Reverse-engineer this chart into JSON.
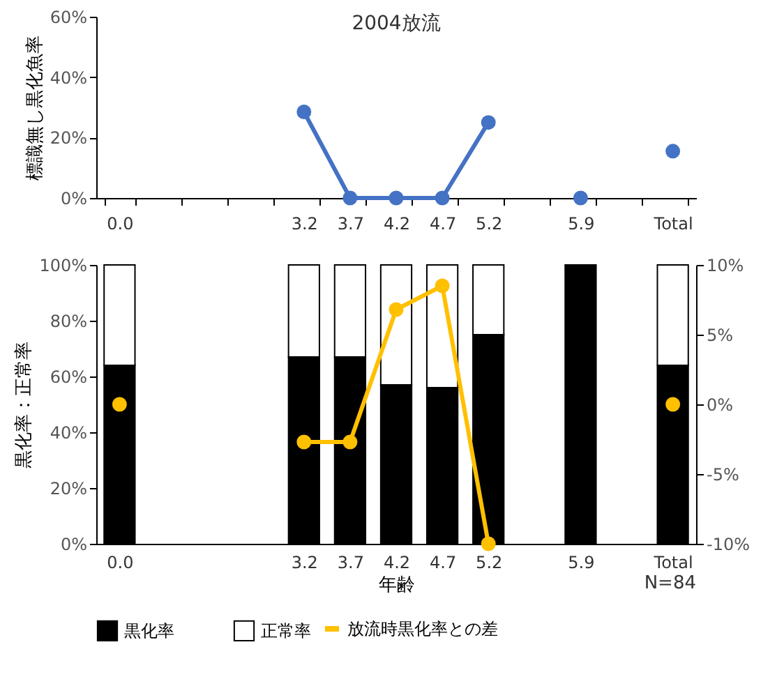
{
  "chart_data": [
    {
      "type": "line",
      "title": "2004放流",
      "ylabel": "標識無し黒化魚率",
      "categories": [
        "0.0",
        null,
        null,
        null,
        "3.2",
        "3.7",
        "4.2",
        "4.7",
        "5.2",
        null,
        "5.9",
        null,
        "Total"
      ],
      "series": [
        {
          "color": "#4472c4",
          "values": [
            null,
            null,
            null,
            null,
            28.5,
            0,
            0,
            0,
            25,
            null,
            0,
            null,
            15.5
          ]
        }
      ],
      "ylim": [
        0,
        60
      ],
      "yticks": [
        {
          "value": 0,
          "label": "0%"
        },
        {
          "value": 20,
          "label": "20%"
        },
        {
          "value": 40,
          "label": "40%"
        },
        {
          "value": 60,
          "label": "60%"
        }
      ],
      "marker": "circle"
    },
    {
      "type": "bar",
      "stacked": true,
      "xlabel": "年齢",
      "ylabel": "黒化率：正常率",
      "annotations": [
        "N=84"
      ],
      "legend": "bottom",
      "marker": "circle",
      "categories": [
        "0.0",
        null,
        null,
        null,
        "3.2",
        "3.7",
        "4.2",
        "4.7",
        "5.2",
        null,
        "5.9",
        null,
        "Total"
      ],
      "series": [
        {
          "name": "黒化率",
          "color": "#000000",
          "values": [
            64,
            null,
            null,
            null,
            67,
            67,
            57,
            56,
            75,
            null,
            100,
            null,
            64
          ]
        },
        {
          "name": "正常率",
          "color": "#ffffff",
          "values": [
            36,
            null,
            null,
            null,
            33,
            33,
            43,
            44,
            25,
            null,
            0,
            null,
            36
          ]
        },
        {
          "name": "放流時黒化率との差",
          "type": "line",
          "axis": "y2",
          "color": "#ffc000",
          "values": [
            0,
            null,
            null,
            null,
            -2.7,
            -2.7,
            6.8,
            8.5,
            -10,
            null,
            null,
            null,
            0
          ]
        }
      ],
      "ylim": [
        0,
        100
      ],
      "yticks": [
        {
          "value": 0,
          "label": "0%"
        },
        {
          "value": 20,
          "label": "20%"
        },
        {
          "value": 40,
          "label": "40%"
        },
        {
          "value": 60,
          "label": "60%"
        },
        {
          "value": 80,
          "label": "80%"
        },
        {
          "value": 100,
          "label": "100%"
        }
      ],
      "y2lim": [
        -10,
        10
      ],
      "y2ticks": [
        {
          "value": -10,
          "label": "-10%"
        },
        {
          "value": -5,
          "label": "-5%"
        },
        {
          "value": 0,
          "label": "0%"
        },
        {
          "value": 5,
          "label": "5%"
        },
        {
          "value": 10,
          "label": "10%"
        }
      ]
    }
  ]
}
